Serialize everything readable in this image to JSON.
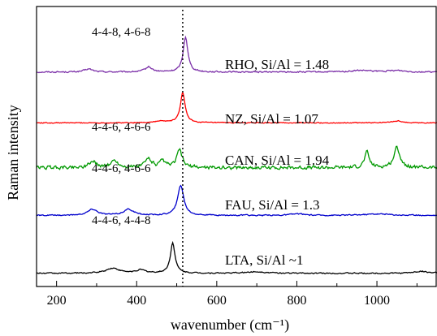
{
  "chart_data": {
    "type": "line",
    "xlabel": "wavenumber (cm⁻¹)",
    "ylabel": "Raman intensity",
    "xlim": [
      150,
      1150
    ],
    "x_ticks": [
      200,
      400,
      600,
      800,
      1000
    ],
    "y_ticks": "none (intensity in arbitrary units, spectra vertically offset)",
    "grid": false,
    "legend": "none - series labeled inline, right of peak",
    "reference_line": {
      "x": 515,
      "style": "dotted",
      "color": "#000000"
    },
    "series": [
      {
        "name": "RHO, Si/Al = 1.48",
        "color": "#7b2fa8",
        "annotation": "4-4-8, 4-6-8",
        "offset": 4.0,
        "noise": 0.012,
        "baseline": 0.02,
        "peaks": [
          [
            280,
            0.06,
            12
          ],
          [
            430,
            0.1,
            10
          ],
          [
            522,
            0.7,
            7
          ],
          [
            960,
            0.03,
            30
          ],
          [
            1050,
            0.03,
            25
          ]
        ]
      },
      {
        "name": "NZ, Si/Al = 1.07",
        "color": "#ff0000",
        "annotation": "",
        "offset": 3.0,
        "noise": 0.008,
        "baseline": 0.01,
        "peaks": [
          [
            515,
            0.6,
            7
          ],
          [
            460,
            0.03,
            20
          ],
          [
            1050,
            0.04,
            15
          ]
        ]
      },
      {
        "name": "CAN, Si/Al = 1.94",
        "color": "#009900",
        "annotation": "4-4-6, 4-6-6",
        "offset": 2.1,
        "noise": 0.03,
        "baseline": 0.02,
        "peaks": [
          [
            290,
            0.12,
            12
          ],
          [
            345,
            0.14,
            10
          ],
          [
            430,
            0.18,
            10
          ],
          [
            465,
            0.12,
            8
          ],
          [
            507,
            0.35,
            8
          ],
          [
            975,
            0.3,
            7
          ],
          [
            1050,
            0.4,
            9
          ]
        ]
      },
      {
        "name": "FAU, Si/Al = 1.3",
        "color": "#0000cc",
        "annotation": "4-4-6, 4-6-6",
        "offset": 1.15,
        "noise": 0.01,
        "baseline": 0.02,
        "peaks": [
          [
            290,
            0.12,
            15
          ],
          [
            380,
            0.12,
            15
          ],
          [
            510,
            0.6,
            9
          ],
          [
            800,
            0.03,
            20
          ],
          [
            1000,
            0.03,
            40
          ]
        ]
      },
      {
        "name": "LTA, Si/Al ~1",
        "color": "#000000",
        "annotation": "4-4-6, 4-4-8",
        "offset": 0.0,
        "noise": 0.01,
        "baseline": 0.02,
        "peaks": [
          [
            340,
            0.1,
            20
          ],
          [
            410,
            0.06,
            15
          ],
          [
            490,
            0.6,
            7
          ],
          [
            700,
            0.03,
            30
          ],
          [
            1110,
            0.04,
            20
          ]
        ]
      }
    ]
  }
}
